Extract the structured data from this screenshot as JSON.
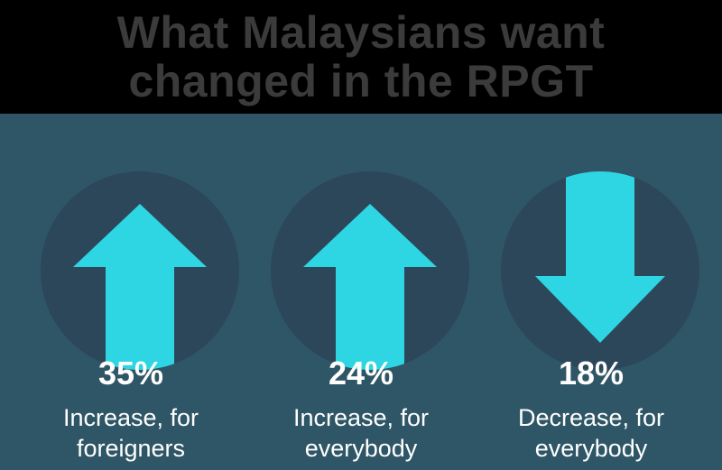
{
  "title": {
    "line1": "What Malaysians want",
    "line2": "changed in the RPGT"
  },
  "colors": {
    "header_bg": "#000000",
    "title_text": "#3b3b3b",
    "background": "#2f5666",
    "circle": "#2c4759",
    "arrow": "#2ed5e3",
    "text": "#ffffff"
  },
  "items": [
    {
      "percent": "35%",
      "value": 35,
      "direction": "up",
      "icon": "arrow-up-icon",
      "line1": "Increase, for",
      "line2": "foreigners"
    },
    {
      "percent": "24%",
      "value": 24,
      "direction": "up",
      "icon": "arrow-up-icon",
      "line1": "Increase, for",
      "line2": "everybody"
    },
    {
      "percent": "18%",
      "value": 18,
      "direction": "down",
      "icon": "arrow-down-icon",
      "line1": "Decrease, for",
      "line2": "everybody"
    }
  ]
}
